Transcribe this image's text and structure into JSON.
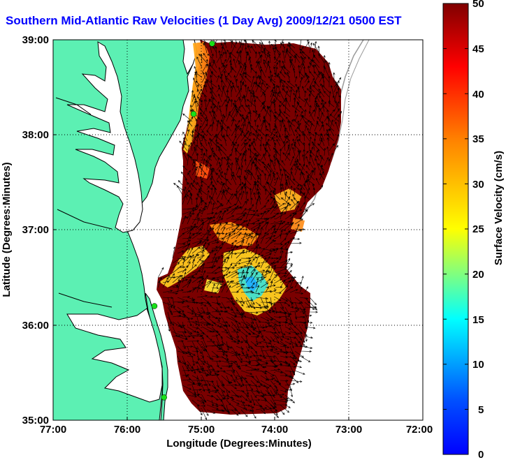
{
  "title": "Southern Mid-Atlantic Raw Velocities (1 Day Avg) 2009/12/21 0500 EST",
  "map": {
    "xlabel": "Longitude (Degrees:Minutes)",
    "ylabel": "Latitude (Degrees:Minutes)",
    "x_ticks": [
      "77:00",
      "76:00",
      "75:00",
      "74:00",
      "73:00",
      "72:00"
    ],
    "y_ticks": [
      "39:00",
      "38:00",
      "37:00",
      "36:00",
      "35:00"
    ],
    "lon_range": [
      -77,
      -72
    ],
    "lat_range": [
      35,
      39
    ],
    "grid": "dotted",
    "colors": {
      "land": "#5cf0b3",
      "coast_line": "#000000",
      "station": "#18e018",
      "title": "#0000ff"
    },
    "stations": [
      {
        "lon": -74.85,
        "lat": 38.96
      },
      {
        "lon": -75.1,
        "lat": 38.22
      },
      {
        "lon": -75.63,
        "lat": 36.2
      },
      {
        "lon": -75.5,
        "lat": 35.24
      }
    ]
  },
  "colorbar": {
    "label": "Surface Velocity (cm/s)",
    "ticks": [
      "50",
      "45",
      "40",
      "35",
      "30",
      "25",
      "20",
      "15",
      "10",
      "5",
      "0"
    ],
    "range": [
      0,
      50
    ],
    "colormap": "jet"
  }
}
